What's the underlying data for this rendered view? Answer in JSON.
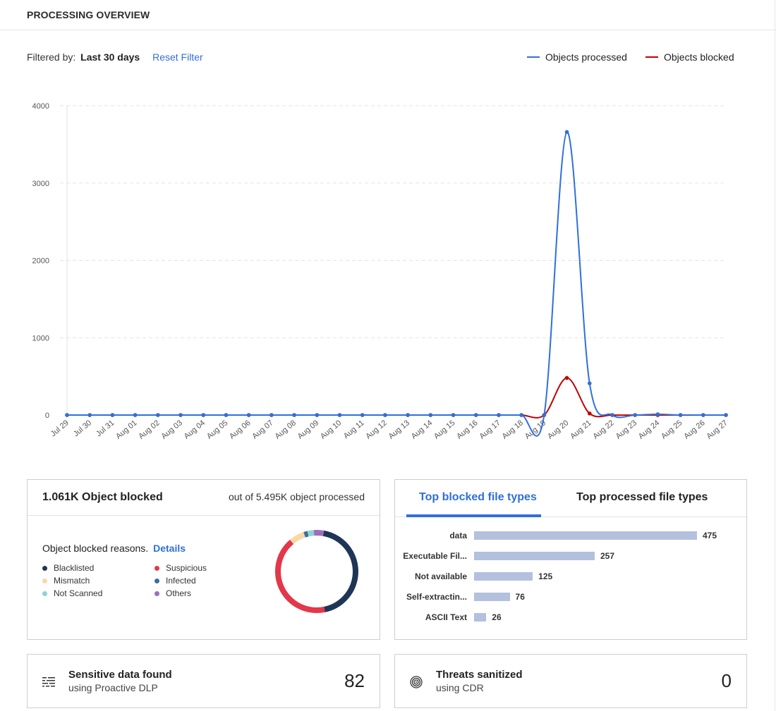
{
  "header": {
    "title": "PROCESSING OVERVIEW"
  },
  "filter": {
    "label": "Filtered by:",
    "value": "Last 30 days",
    "reset_label": "Reset Filter"
  },
  "legend": {
    "processed": {
      "label": "Objects processed",
      "color": "#2f6fdc"
    },
    "blocked": {
      "label": "Objects blocked",
      "color": "#c00000"
    }
  },
  "chart_data": {
    "type": "line",
    "x": [
      "Jul 29",
      "Jul 30",
      "Jul 31",
      "Aug 01",
      "Aug 02",
      "Aug 03",
      "Aug 04",
      "Aug 05",
      "Aug 06",
      "Aug 07",
      "Aug 08",
      "Aug 09",
      "Aug 10",
      "Aug 11",
      "Aug 12",
      "Aug 13",
      "Aug 14",
      "Aug 15",
      "Aug 16",
      "Aug 17",
      "Aug 18",
      "Aug 19",
      "Aug 20",
      "Aug 21",
      "Aug 22",
      "Aug 23",
      "Aug 24",
      "Aug 25",
      "Aug 26",
      "Aug 27"
    ],
    "series": [
      {
        "name": "Objects processed",
        "color": "#2f6fdc",
        "values": [
          0,
          0,
          0,
          0,
          0,
          0,
          0,
          0,
          0,
          0,
          0,
          0,
          0,
          0,
          0,
          0,
          0,
          0,
          0,
          0,
          0,
          0,
          3660,
          410,
          0,
          0,
          10,
          0,
          0,
          0
        ]
      },
      {
        "name": "Objects blocked",
        "color": "#c00000",
        "values": [
          0,
          0,
          0,
          0,
          0,
          0,
          0,
          0,
          0,
          0,
          0,
          0,
          0,
          0,
          0,
          0,
          0,
          0,
          0,
          0,
          0,
          0,
          480,
          20,
          0,
          0,
          0,
          0,
          0,
          0
        ]
      }
    ],
    "y_ticks": [
      0,
      1000,
      2000,
      3000,
      4000
    ],
    "ylim": [
      0,
      4000
    ],
    "grid": true,
    "legend_position": "top-right",
    "title": "",
    "xlabel": "",
    "ylabel": ""
  },
  "blocked_card": {
    "headline": "1.061K Object blocked",
    "out_of": "out of 5.495K object processed",
    "reasons_title": "Object blocked reasons.",
    "details_label": "Details",
    "reasons": [
      {
        "label": "Blacklisted",
        "color": "#1f3556"
      },
      {
        "label": "Suspicious",
        "color": "#e2384a"
      },
      {
        "label": "Mismatch",
        "color": "#f8d9a6"
      },
      {
        "label": "Infected",
        "color": "#3a6f9b"
      },
      {
        "label": "Not Scanned",
        "color": "#8fd3d6"
      },
      {
        "label": "Others",
        "color": "#9b6fbf"
      }
    ],
    "donut_fractions": [
      0.44,
      0.42,
      0.06,
      0.015,
      0.025,
      0.04
    ]
  },
  "types_card": {
    "tab_blocked": "Top blocked file types",
    "tab_processed": "Top processed file types",
    "bars": [
      {
        "label": "data",
        "value": 475
      },
      {
        "label": "Executable Fil...",
        "value": 257
      },
      {
        "label": "Not available",
        "value": 125
      },
      {
        "label": "Self-extractin...",
        "value": 76
      },
      {
        "label": "ASCII Text",
        "value": 26
      }
    ],
    "bar_max": 475,
    "bar_color": "#b3c0de"
  },
  "dlp": {
    "title": "Sensitive data found",
    "subtitle": "using Proactive DLP",
    "value": "82",
    "icon": "dlp-icon"
  },
  "cdr": {
    "title": "Threats sanitized",
    "subtitle": "using CDR",
    "value": "0",
    "icon": "cdr-icon"
  }
}
